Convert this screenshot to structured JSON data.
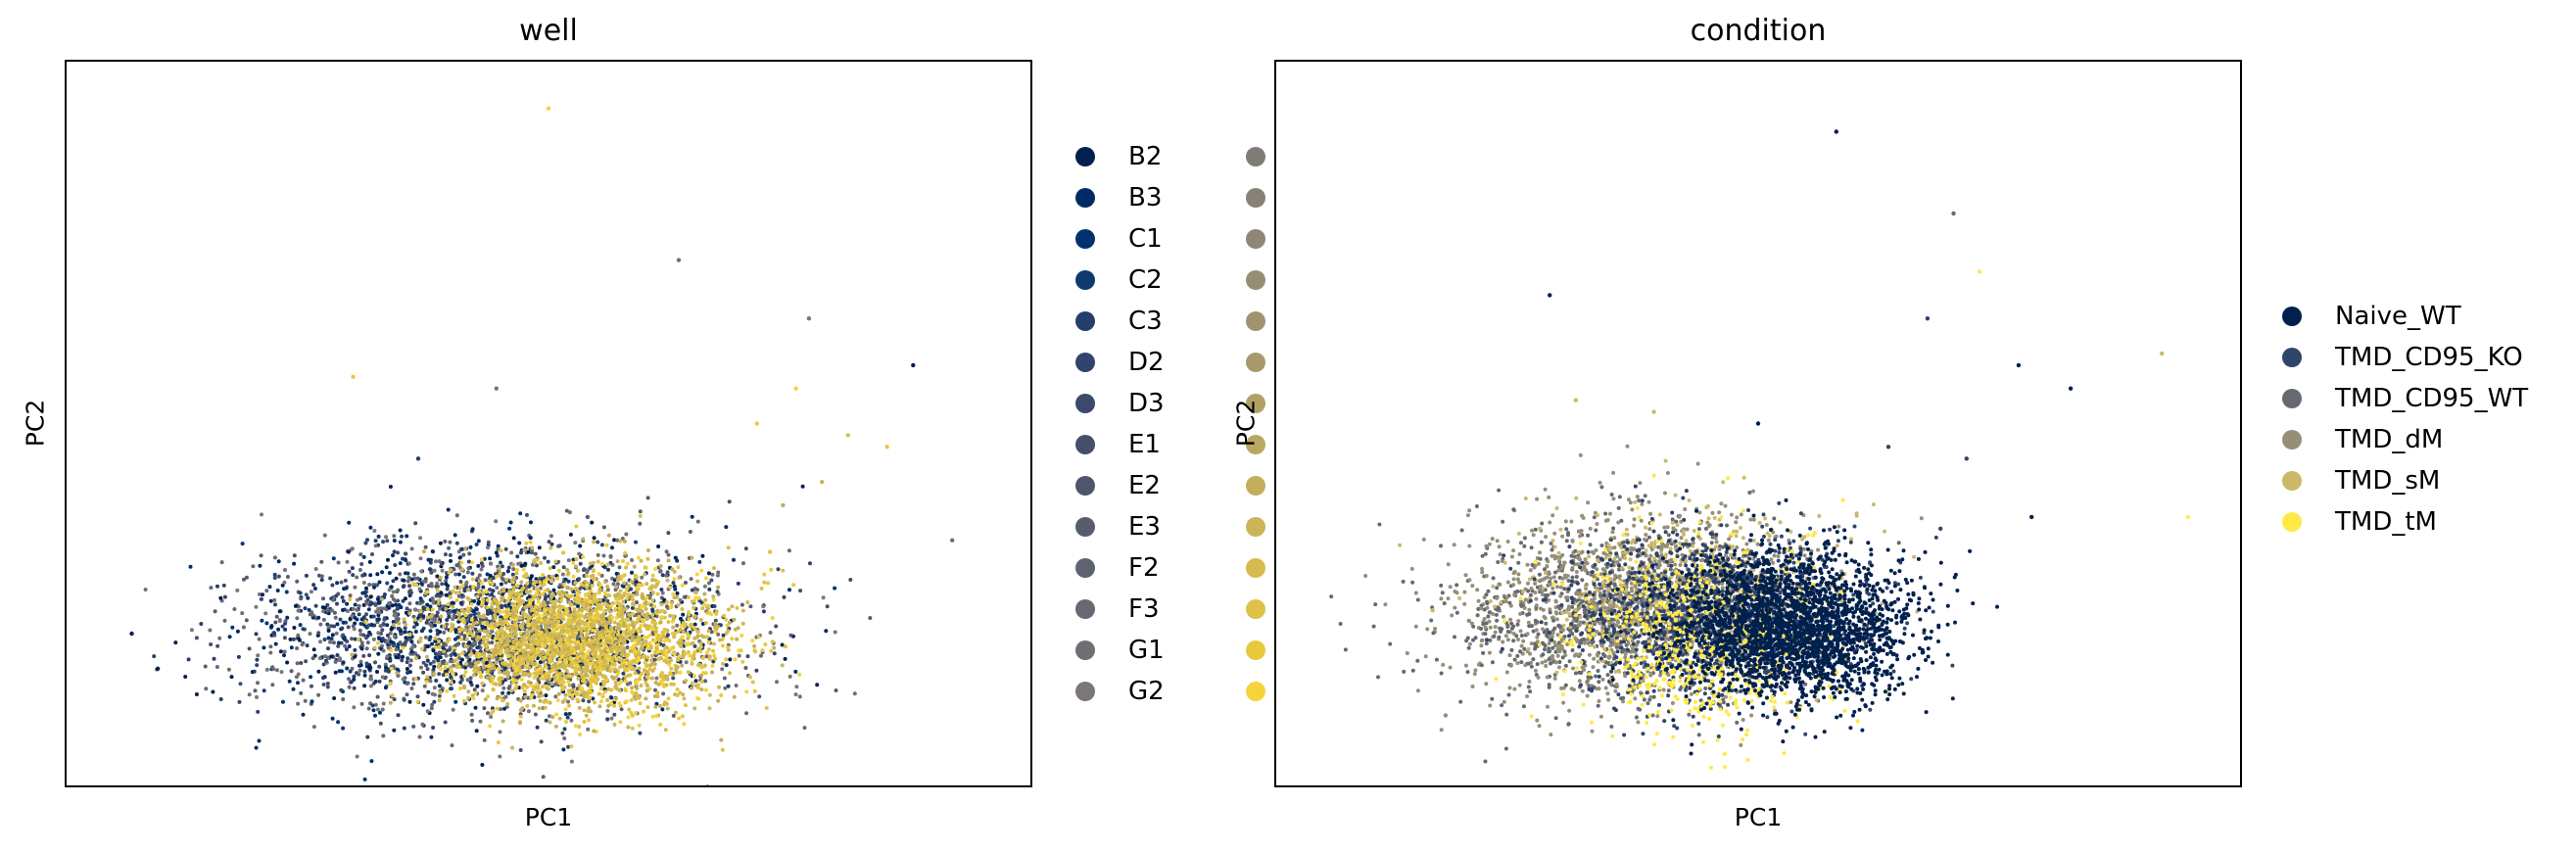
{
  "chart_data": [
    {
      "type": "scatter",
      "title": "well",
      "xlabel": "PC1",
      "ylabel": "PC2",
      "ticks": "none",
      "grid": false,
      "legend_placement": "right-outside-two-columns",
      "legend_col1": [
        {
          "label": "B2",
          "color": "#00204d"
        },
        {
          "label": "B3",
          "color": "#002a66"
        },
        {
          "label": "C1",
          "color": "#00326e"
        },
        {
          "label": "C2",
          "color": "#0f3a6e"
        },
        {
          "label": "C3",
          "color": "#233e6c"
        },
        {
          "label": "D2",
          "color": "#31446b"
        },
        {
          "label": "D3",
          "color": "#3b496c"
        },
        {
          "label": "E1",
          "color": "#454f6b"
        },
        {
          "label": "E2",
          "color": "#4f556c"
        },
        {
          "label": "E3",
          "color": "#575c6e"
        },
        {
          "label": "F2",
          "color": "#5f6270"
        },
        {
          "label": "F3",
          "color": "#686873"
        },
        {
          "label": "G1",
          "color": "#707074"
        },
        {
          "label": "G2",
          "color": "#7a7776"
        }
      ],
      "legend_col2_colors": [
        "#7f7c75",
        "#878176",
        "#8f8775",
        "#978d72",
        "#a0946f",
        "#a89a6c",
        "#b1a167",
        "#baa762",
        "#c3ae5d",
        "#ccb458",
        "#d5bb50",
        "#dec247",
        "#e8c93d",
        "#f4d33b"
      ],
      "clusters": [
        {
          "cx": -0.25,
          "cy": -0.65,
          "sx": 0.9,
          "sy": 0.38,
          "n": 2600,
          "colors": [
            "#00204d",
            "#002a66",
            "#00326e",
            "#233e6c",
            "#31446b",
            "#454f6b",
            "#575c6e",
            "#686873",
            "#707074",
            "#7a7776"
          ]
        },
        {
          "cx": 0.45,
          "cy": -0.75,
          "sx": 0.55,
          "sy": 0.3,
          "n": 2400,
          "colors": [
            "#f4d33b",
            "#e8c93d",
            "#dec247",
            "#d5bb50",
            "#ccb458",
            "#c3ae5d"
          ]
        }
      ],
      "sparse_points": [
        {
          "x": 1.8,
          "y": 1.1,
          "color": "#e8c93d"
        },
        {
          "x": 2.1,
          "y": 1.4,
          "color": "#f4d33b"
        },
        {
          "x": 2.5,
          "y": 1.0,
          "color": "#dec247"
        },
        {
          "x": 2.3,
          "y": 0.6,
          "color": "#ccb458"
        },
        {
          "x": 2.0,
          "y": 0.4,
          "color": "#c3ae5d"
        },
        {
          "x": 2.8,
          "y": 0.9,
          "color": "#e8c93d"
        },
        {
          "x": 1.9,
          "y": 0.0,
          "color": "#dec247"
        },
        {
          "x": 1.5,
          "y": -0.2,
          "color": "#7a7776"
        },
        {
          "x": 0.2,
          "y": 3.8,
          "color": "#f4d33b"
        },
        {
          "x": 1.2,
          "y": 2.5,
          "color": "#707074"
        },
        {
          "x": 2.2,
          "y": 2.0,
          "color": "#7a7776"
        },
        {
          "x": 3.0,
          "y": 1.6,
          "color": "#00204d"
        },
        {
          "x": -1.3,
          "y": 1.5,
          "color": "#e8c93d"
        },
        {
          "x": -0.2,
          "y": 1.4,
          "color": "#7a7776"
        },
        {
          "x": -0.8,
          "y": 0.8,
          "color": "#233e6c"
        },
        {
          "x": 0.5,
          "y": 0.3,
          "color": "#575c6e"
        },
        {
          "x": -3.0,
          "y": -0.7,
          "color": "#00204d"
        },
        {
          "x": -2.8,
          "y": -1.0,
          "color": "#00204d"
        },
        {
          "x": 3.3,
          "y": 0.1,
          "color": "#707074"
        }
      ]
    },
    {
      "type": "scatter",
      "title": "condition",
      "xlabel": "PC1",
      "ylabel": "PC2",
      "ticks": "none",
      "grid": false,
      "legend_placement": "right-outside",
      "legend": [
        {
          "label": "Naive_WT",
          "color": "#00204d"
        },
        {
          "label": "TMD_CD95_KO",
          "color": "#31446b"
        },
        {
          "label": "TMD_CD95_WT",
          "color": "#666970"
        },
        {
          "label": "TMD_dM",
          "color": "#958f78"
        },
        {
          "label": "TMD_sM",
          "color": "#cbb969"
        },
        {
          "label": "TMD_tM",
          "color": "#ffe945"
        }
      ],
      "clusters": [
        {
          "cx": -0.9,
          "cy": -0.55,
          "sx": 0.65,
          "sy": 0.4,
          "n": 1600,
          "colors": [
            "#666970",
            "#958f78"
          ]
        },
        {
          "cx": -0.4,
          "cy": -0.3,
          "sx": 0.6,
          "sy": 0.35,
          "n": 900,
          "colors": [
            "#cbb969",
            "#958f78"
          ]
        },
        {
          "cx": -0.1,
          "cy": -0.55,
          "sx": 0.55,
          "sy": 0.35,
          "n": 1300,
          "colors": [
            "#31446b"
          ]
        },
        {
          "cx": -0.2,
          "cy": -0.75,
          "sx": 0.5,
          "sy": 0.4,
          "n": 600,
          "colors": [
            "#ffe945"
          ]
        },
        {
          "cx": 0.45,
          "cy": -0.65,
          "sx": 0.45,
          "sy": 0.3,
          "n": 2300,
          "colors": [
            "#00204d"
          ]
        }
      ],
      "sparse_points": [
        {
          "x": 0.8,
          "y": 3.6,
          "color": "#00204d"
        },
        {
          "x": 1.7,
          "y": 2.9,
          "color": "#666970"
        },
        {
          "x": 1.9,
          "y": 2.4,
          "color": "#ffe945"
        },
        {
          "x": 1.5,
          "y": 2.0,
          "color": "#31446b"
        },
        {
          "x": 2.2,
          "y": 1.6,
          "color": "#00204d"
        },
        {
          "x": 2.6,
          "y": 1.4,
          "color": "#00204d"
        },
        {
          "x": 3.3,
          "y": 1.7,
          "color": "#cbb969"
        },
        {
          "x": 1.8,
          "y": 0.8,
          "color": "#31446b"
        },
        {
          "x": 2.3,
          "y": 0.3,
          "color": "#00204d"
        },
        {
          "x": 1.6,
          "y": 0.2,
          "color": "#31446b"
        },
        {
          "x": -1.4,
          "y": 2.2,
          "color": "#00204d"
        },
        {
          "x": -0.6,
          "y": 1.2,
          "color": "#cbb969"
        },
        {
          "x": 0.2,
          "y": 1.1,
          "color": "#00204d"
        },
        {
          "x": 1.2,
          "y": 0.9,
          "color": "#31446b"
        },
        {
          "x": 3.5,
          "y": 0.3,
          "color": "#ffe945"
        },
        {
          "x": -2.3,
          "y": -0.5,
          "color": "#cbb969"
        },
        {
          "x": -2.2,
          "y": -1.4,
          "color": "#958f78"
        },
        {
          "x": -1.2,
          "y": 1.3,
          "color": "#cbb969"
        }
      ]
    }
  ]
}
